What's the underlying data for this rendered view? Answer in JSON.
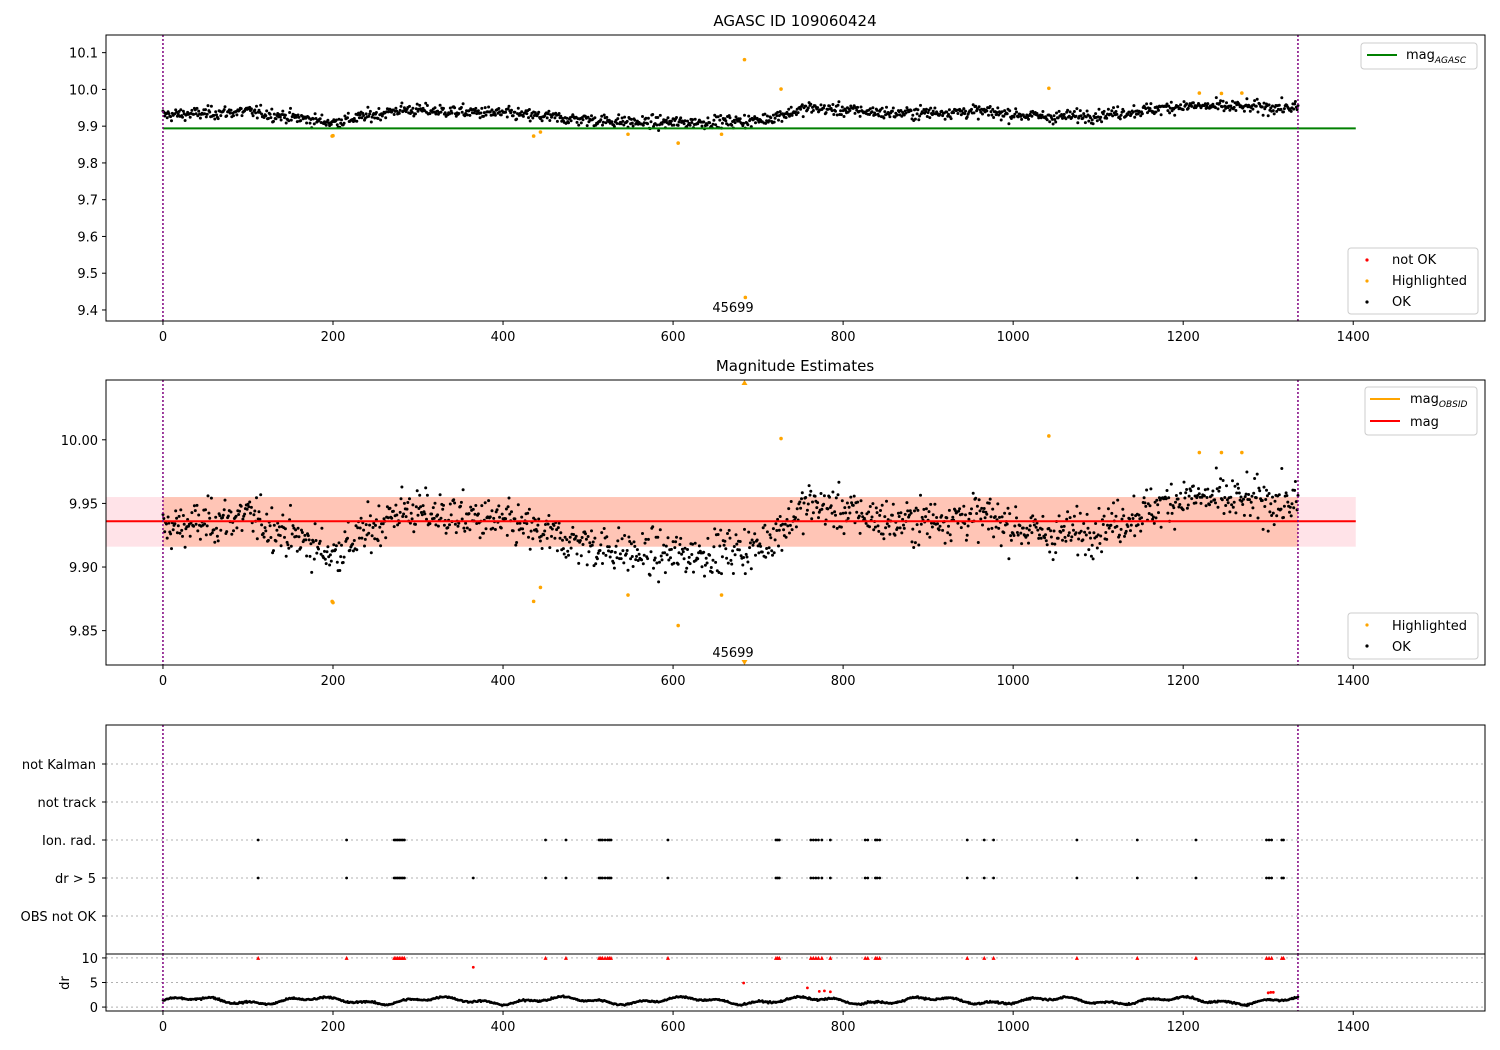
{
  "chart_data": [
    {
      "type": "scatter",
      "title": "AGASC ID 109060424",
      "xlim": [
        -67,
        1555
      ],
      "ylim": [
        9.37,
        10.148
      ],
      "xticks": [
        "0",
        "200",
        "400",
        "600",
        "800",
        "1000",
        "1200",
        "1400"
      ],
      "yticks": [
        "9.4",
        "9.5",
        "9.6",
        "9.7",
        "9.8",
        "9.9",
        "10.0",
        "10.1"
      ],
      "vlines": [
        0,
        1335
      ],
      "hline": {
        "name": "mag_AGASC",
        "y": 9.894,
        "x_range": [
          0,
          1403
        ],
        "color": "#008000"
      },
      "annotation": {
        "text": "45699",
        "x": 670,
        "y": 9.4
      },
      "legend_lines": [
        {
          "name": "mag",
          "subscript": "AGASC",
          "color": "#008000"
        }
      ],
      "legend_points": [
        {
          "name": "not OK",
          "color": "#ff0000"
        },
        {
          "name": "Highlighted",
          "color": "#ffa500"
        },
        {
          "name": "OK",
          "color": "#000000"
        }
      ],
      "ok_model": {
        "n": 1336,
        "baseline": 9.93,
        "spread": 0.016
      },
      "highlighted": [
        [
          199,
          9.873
        ],
        [
          200,
          9.874
        ],
        [
          436,
          9.873
        ],
        [
          444,
          9.884
        ],
        [
          547,
          9.878
        ],
        [
          606,
          9.854
        ],
        [
          657,
          9.878
        ],
        [
          684,
          10.081
        ],
        [
          685,
          9.434
        ],
        [
          727,
          10.001
        ],
        [
          1042,
          10.003
        ],
        [
          1219,
          9.99
        ],
        [
          1245,
          9.989
        ],
        [
          1269,
          9.99
        ]
      ],
      "colors": {
        "ok": "#000000",
        "highlighted": "#ffa500",
        "not_ok": "#ff0000",
        "vline": "#800080"
      }
    },
    {
      "type": "scatter",
      "title": "Magnitude Estimates",
      "xlim": [
        -67,
        1555
      ],
      "ylim": [
        9.823,
        10.047
      ],
      "xticks": [
        "0",
        "200",
        "400",
        "600",
        "800",
        "1000",
        "1200",
        "1400"
      ],
      "yticks": [
        "9.85",
        "9.90",
        "9.95",
        "10.00"
      ],
      "vlines": [
        0,
        1335
      ],
      "mean_line": {
        "name": "mag",
        "y": 9.936,
        "x_range": [
          -67,
          1403
        ],
        "color": "#ff0000"
      },
      "band_outer": {
        "y": [
          9.916,
          9.955
        ],
        "x_range": [
          -67,
          1403
        ],
        "color": "#ffc0cb"
      },
      "band_inner": {
        "y": [
          9.916,
          9.955
        ],
        "x_range": [
          0,
          1335
        ],
        "color": "#ffa07a"
      },
      "annotation": {
        "text": "45699",
        "x": 670,
        "y": 9.828
      },
      "legend_lines": [
        {
          "name": "mag",
          "subscript": "OBSID",
          "color": "#ffa500"
        },
        {
          "name": "mag",
          "subscript": "",
          "color": "#ff0000"
        }
      ],
      "legend_points": [
        {
          "name": "Highlighted",
          "color": "#ffa500"
        },
        {
          "name": "OK",
          "color": "#000000"
        }
      ],
      "ok_model": {
        "n": 1336,
        "baseline": 9.93,
        "spread": 0.016
      },
      "highlighted": [
        [
          199,
          9.873
        ],
        [
          200,
          9.872
        ],
        [
          436,
          9.873
        ],
        [
          444,
          9.884
        ],
        [
          547,
          9.878
        ],
        [
          606,
          9.854
        ],
        [
          657,
          9.878
        ],
        [
          727,
          10.001
        ],
        [
          1042,
          10.003
        ],
        [
          1219,
          9.99
        ],
        [
          1245,
          9.99
        ],
        [
          1269,
          9.99
        ]
      ],
      "offscale_markers": [
        {
          "x": 684,
          "edge": "top",
          "color": "#ffa500"
        },
        {
          "x": 684,
          "edge": "bottom",
          "color": "#ffa500"
        }
      ],
      "colors": {
        "ok": "#000000",
        "highlighted": "#ffa500",
        "vline": "#800080"
      }
    },
    {
      "type": "scatter",
      "title": "",
      "xlim": [
        -67,
        1555
      ],
      "categories": [
        "not Kalman",
        "not track",
        "Ion. rad.",
        "dr > 5",
        "OBS not OK"
      ],
      "vlines": [
        0,
        1335
      ],
      "flags": {
        "Ion. rad.": [
          112,
          216,
          272,
          274,
          276,
          278,
          280,
          282,
          284,
          450,
          474,
          513,
          515,
          517,
          520,
          523,
          525,
          527,
          594,
          721,
          723,
          725,
          762,
          765,
          768,
          771,
          775,
          785,
          826,
          829,
          838,
          840,
          843,
          946,
          966,
          977,
          1075,
          1146,
          1215,
          1298,
          1301,
          1304,
          1316,
          1318
        ],
        "dr > 5": [
          112,
          216,
          272,
          274,
          276,
          278,
          280,
          282,
          284,
          365,
          450,
          474,
          513,
          515,
          517,
          520,
          523,
          525,
          527,
          594,
          721,
          723,
          725,
          762,
          765,
          768,
          771,
          775,
          785,
          826,
          829,
          838,
          840,
          843,
          946,
          966,
          977,
          1075,
          1146,
          1215,
          1298,
          1301,
          1304,
          1316,
          1318
        ]
      },
      "colors": {
        "flag": "#000000",
        "vline": "#800080",
        "grid": "#b0b0b0"
      }
    },
    {
      "type": "scatter",
      "title": "",
      "xlim": [
        -67,
        1555
      ],
      "ylim": [
        -0.8,
        10.8
      ],
      "ylabel": "dr",
      "xticks": [
        "0",
        "200",
        "400",
        "600",
        "800",
        "1000",
        "1200",
        "1400"
      ],
      "yticks": [
        "0",
        "5",
        "10"
      ],
      "vlines": [
        0,
        1335
      ],
      "dr_model": {
        "n": 1336,
        "mean": 1.3
      },
      "red_capped": [
        112,
        216,
        272,
        274,
        276,
        278,
        280,
        282,
        284,
        450,
        474,
        513,
        515,
        517,
        520,
        523,
        525,
        527,
        594,
        721,
        723,
        725,
        762,
        765,
        768,
        771,
        775,
        785,
        826,
        829,
        838,
        840,
        843,
        946,
        966,
        977,
        1075,
        1146,
        1215,
        1298,
        1301,
        1304,
        1316,
        1318
      ],
      "red_points": [
        [
          365,
          8.1
        ],
        [
          683,
          4.9
        ],
        [
          758,
          3.9
        ],
        [
          772,
          3.2
        ],
        [
          778,
          3.3
        ],
        [
          785,
          3.1
        ],
        [
          1300,
          2.9
        ],
        [
          1303,
          3.0
        ],
        [
          1306,
          3.0
        ]
      ],
      "colors": {
        "ok": "#000000",
        "red": "#ff0000",
        "vline": "#800080",
        "grid": "#b0b0b0"
      }
    }
  ]
}
